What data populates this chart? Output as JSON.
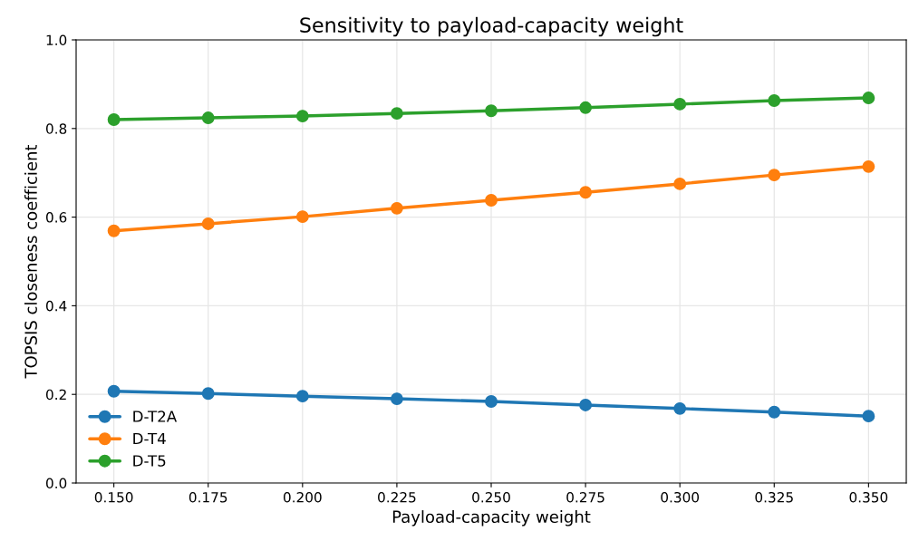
{
  "chart_data": {
    "type": "line",
    "title": "Sensitivity to payload-capacity weight",
    "xlabel": "Payload-capacity weight",
    "ylabel": "TOPSIS closeness coefficient",
    "x": [
      0.15,
      0.175,
      0.2,
      0.225,
      0.25,
      0.275,
      0.3,
      0.325,
      0.35
    ],
    "series": [
      {
        "name": "D-T2A",
        "color": "#1f77b4",
        "values": [
          0.207,
          0.202,
          0.196,
          0.19,
          0.184,
          0.176,
          0.168,
          0.16,
          0.151
        ]
      },
      {
        "name": "D-T4",
        "color": "#ff7f0e",
        "values": [
          0.569,
          0.585,
          0.601,
          0.62,
          0.638,
          0.656,
          0.675,
          0.695,
          0.714
        ]
      },
      {
        "name": "D-T5",
        "color": "#2ca02c",
        "values": [
          0.82,
          0.824,
          0.828,
          0.834,
          0.84,
          0.847,
          0.855,
          0.863,
          0.869
        ]
      }
    ],
    "xlim": [
      0.14,
      0.36
    ],
    "xticks": [
      {
        "value": 0.15,
        "label": "0.150"
      },
      {
        "value": 0.175,
        "label": "0.175"
      },
      {
        "value": 0.2,
        "label": "0.200"
      },
      {
        "value": 0.225,
        "label": "0.225"
      },
      {
        "value": 0.25,
        "label": "0.250"
      },
      {
        "value": 0.275,
        "label": "0.275"
      },
      {
        "value": 0.3,
        "label": "0.300"
      },
      {
        "value": 0.325,
        "label": "0.325"
      },
      {
        "value": 0.35,
        "label": "0.350"
      }
    ],
    "ylim": [
      0,
      1
    ],
    "yticks": [
      {
        "value": 0,
        "label": "0.0"
      },
      {
        "value": 0.2,
        "label": "0.2"
      },
      {
        "value": 0.4,
        "label": "0.4"
      },
      {
        "value": 0.6,
        "label": "0.6"
      },
      {
        "value": 0.8,
        "label": "0.8"
      },
      {
        "value": 1,
        "label": "1.0"
      }
    ],
    "grid": true,
    "legend": "bottom left",
    "marker": "circle",
    "line_style": "solid"
  }
}
